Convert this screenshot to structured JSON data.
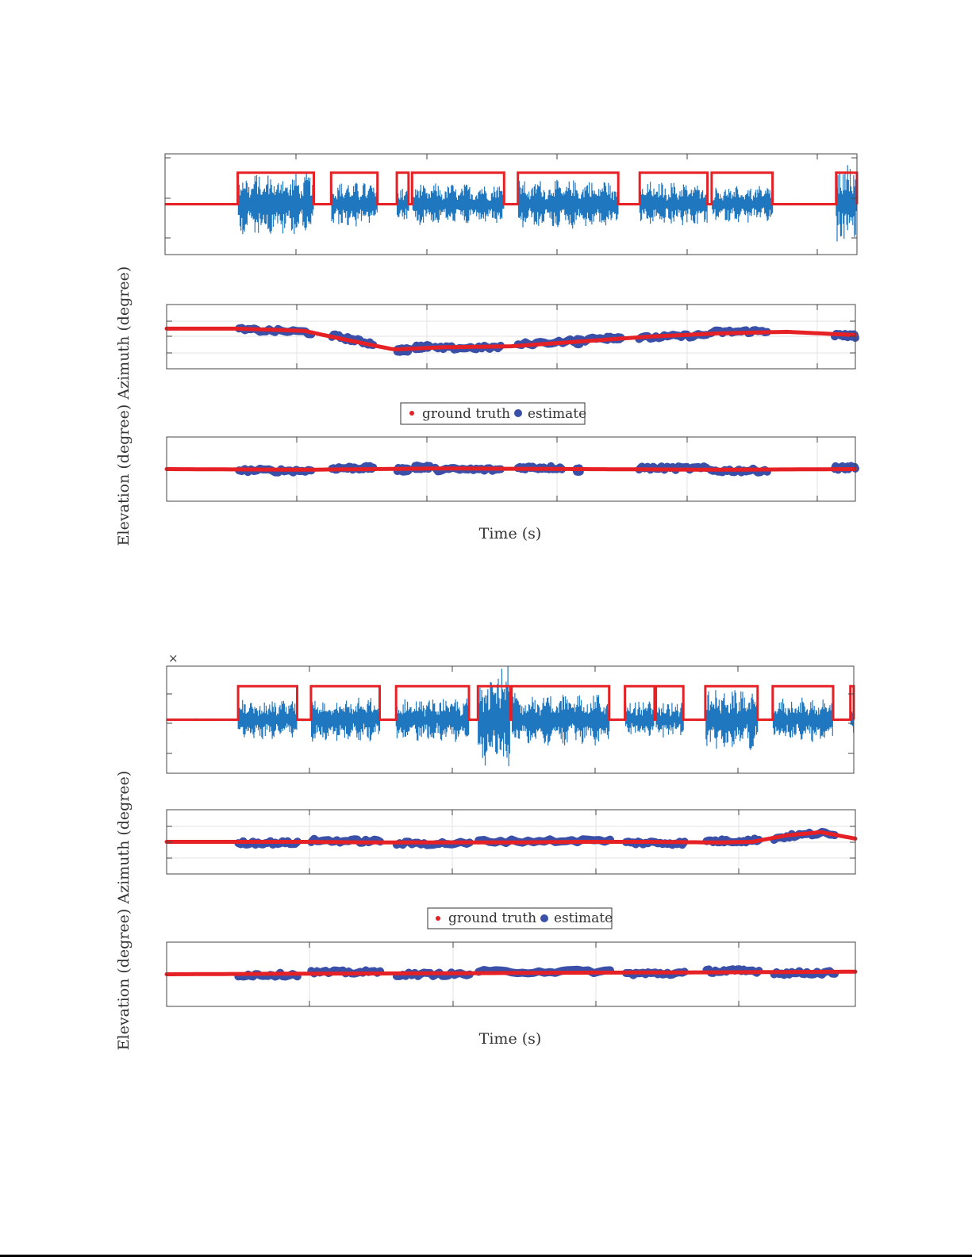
{
  "figures": [
    {
      "ylabel": "Elevation (degree) Azimuth (degree)",
      "xlabel": "Time (s)",
      "legend": {
        "ground_truth": "ground truth",
        "estimate": "estimate"
      },
      "exponent_mark": ""
    },
    {
      "ylabel": "Elevation (degree) Azimuth (degree)",
      "xlabel": "Time (s)",
      "legend": {
        "ground_truth": "ground truth",
        "estimate": "estimate"
      },
      "exponent_mark": "×"
    }
  ],
  "colors": {
    "waveform": "#1f77c0",
    "ground_truth": "#e52125",
    "estimate": "#3a50a8",
    "grid": "#e3e3e3",
    "axis": "#444444"
  },
  "chart_data": [
    {
      "type": "line",
      "panel": "waveform-1",
      "xlim": [
        0,
        1
      ],
      "ylim": [
        -1.2,
        1.2
      ],
      "grid": false,
      "voice_activity": [
        [
          0.105,
          0.215
        ],
        [
          0.24,
          0.307
        ],
        [
          0.335,
          0.352
        ],
        [
          0.357,
          0.49
        ],
        [
          0.51,
          0.655
        ],
        [
          0.686,
          0.784
        ],
        [
          0.79,
          0.878
        ],
        [
          0.97,
          1.0
        ]
      ],
      "burst_amplitude": [
        0.75,
        0.55,
        0.4,
        0.5,
        0.6,
        0.55,
        0.45,
        1.0
      ]
    },
    {
      "type": "scatter",
      "panel": "azimuth-1",
      "xlim": [
        0,
        1
      ],
      "ylim": [
        -1,
        1
      ],
      "grid": true,
      "legend_position": "bottom",
      "ground_truth": {
        "x": [
          0,
          0.1,
          0.2,
          0.25,
          0.33,
          0.4,
          0.5,
          0.6,
          0.7,
          0.8,
          0.9,
          1.0
        ],
        "y": [
          0.25,
          0.25,
          0.18,
          -0.05,
          -0.4,
          -0.33,
          -0.3,
          -0.15,
          0.0,
          0.1,
          0.15,
          0.05
        ]
      },
      "estimate_segments": [
        [
          0.105,
          0.21
        ],
        [
          0.24,
          0.3
        ],
        [
          0.335,
          0.352
        ],
        [
          0.36,
          0.382
        ],
        [
          0.39,
          0.485
        ],
        [
          0.51,
          0.64
        ],
        [
          0.595,
          0.6
        ],
        [
          0.64,
          0.66
        ],
        [
          0.686,
          0.784
        ],
        [
          0.79,
          0.872
        ],
        [
          0.97,
          1.0
        ]
      ]
    },
    {
      "type": "scatter",
      "panel": "elevation-1",
      "xlim": [
        0,
        1
      ],
      "ylim": [
        -1,
        1
      ],
      "grid": true,
      "ground_truth": {
        "x": [
          0,
          0.2,
          0.4,
          0.6,
          0.8,
          1.0
        ],
        "y": [
          0.0,
          -0.02,
          0.02,
          0.0,
          -0.02,
          0.0
        ]
      },
      "estimate_segments": [
        [
          0.105,
          0.21
        ],
        [
          0.24,
          0.3
        ],
        [
          0.335,
          0.352
        ],
        [
          0.36,
          0.382
        ],
        [
          0.39,
          0.485
        ],
        [
          0.51,
          0.574
        ],
        [
          0.595,
          0.6
        ],
        [
          0.686,
          0.784
        ],
        [
          0.79,
          0.872
        ],
        [
          0.97,
          1.0
        ]
      ]
    },
    {
      "type": "line",
      "panel": "waveform-2",
      "xlim": [
        0,
        1
      ],
      "ylim": [
        -1.2,
        1.2
      ],
      "grid": false,
      "voice_activity": [
        [
          0.104,
          0.19
        ],
        [
          0.21,
          0.31
        ],
        [
          0.334,
          0.44
        ],
        [
          0.453,
          0.5
        ],
        [
          0.502,
          0.644
        ],
        [
          0.667,
          0.71
        ],
        [
          0.712,
          0.752
        ],
        [
          0.784,
          0.86
        ],
        [
          0.882,
          0.97
        ],
        [
          0.995,
          1.0
        ]
      ],
      "burst_amplitude": [
        0.45,
        0.5,
        0.5,
        1.2,
        0.6,
        0.45,
        0.4,
        0.7,
        0.5,
        0.3
      ]
    },
    {
      "type": "scatter",
      "panel": "azimuth-2",
      "xlim": [
        0,
        1
      ],
      "ylim": [
        -1,
        1
      ],
      "grid": true,
      "legend_position": "bottom",
      "ground_truth": {
        "x": [
          0,
          0.2,
          0.3,
          0.5,
          0.6,
          0.7,
          0.8,
          0.85,
          0.9,
          0.95,
          1.0
        ],
        "y": [
          0.0,
          0.0,
          -0.02,
          -0.02,
          0.0,
          0.0,
          -0.02,
          0.0,
          0.2,
          0.3,
          0.1
        ]
      },
      "estimate_segments": [
        [
          0.104,
          0.19
        ],
        [
          0.21,
          0.31
        ],
        [
          0.334,
          0.44
        ],
        [
          0.453,
          0.644
        ],
        [
          0.667,
          0.752
        ],
        [
          0.784,
          0.86
        ],
        [
          0.882,
          0.97
        ]
      ]
    },
    {
      "type": "scatter",
      "panel": "elevation-2",
      "xlim": [
        0,
        1
      ],
      "ylim": [
        -1,
        1
      ],
      "grid": true,
      "ground_truth": {
        "x": [
          0,
          0.2,
          0.4,
          0.6,
          0.8,
          1.0
        ],
        "y": [
          0.0,
          0.02,
          0.03,
          0.05,
          0.06,
          0.08
        ]
      },
      "estimate_segments": [
        [
          0.104,
          0.19
        ],
        [
          0.21,
          0.31
        ],
        [
          0.334,
          0.44
        ],
        [
          0.453,
          0.644
        ],
        [
          0.667,
          0.752
        ],
        [
          0.784,
          0.86
        ],
        [
          0.882,
          0.97
        ]
      ]
    }
  ]
}
